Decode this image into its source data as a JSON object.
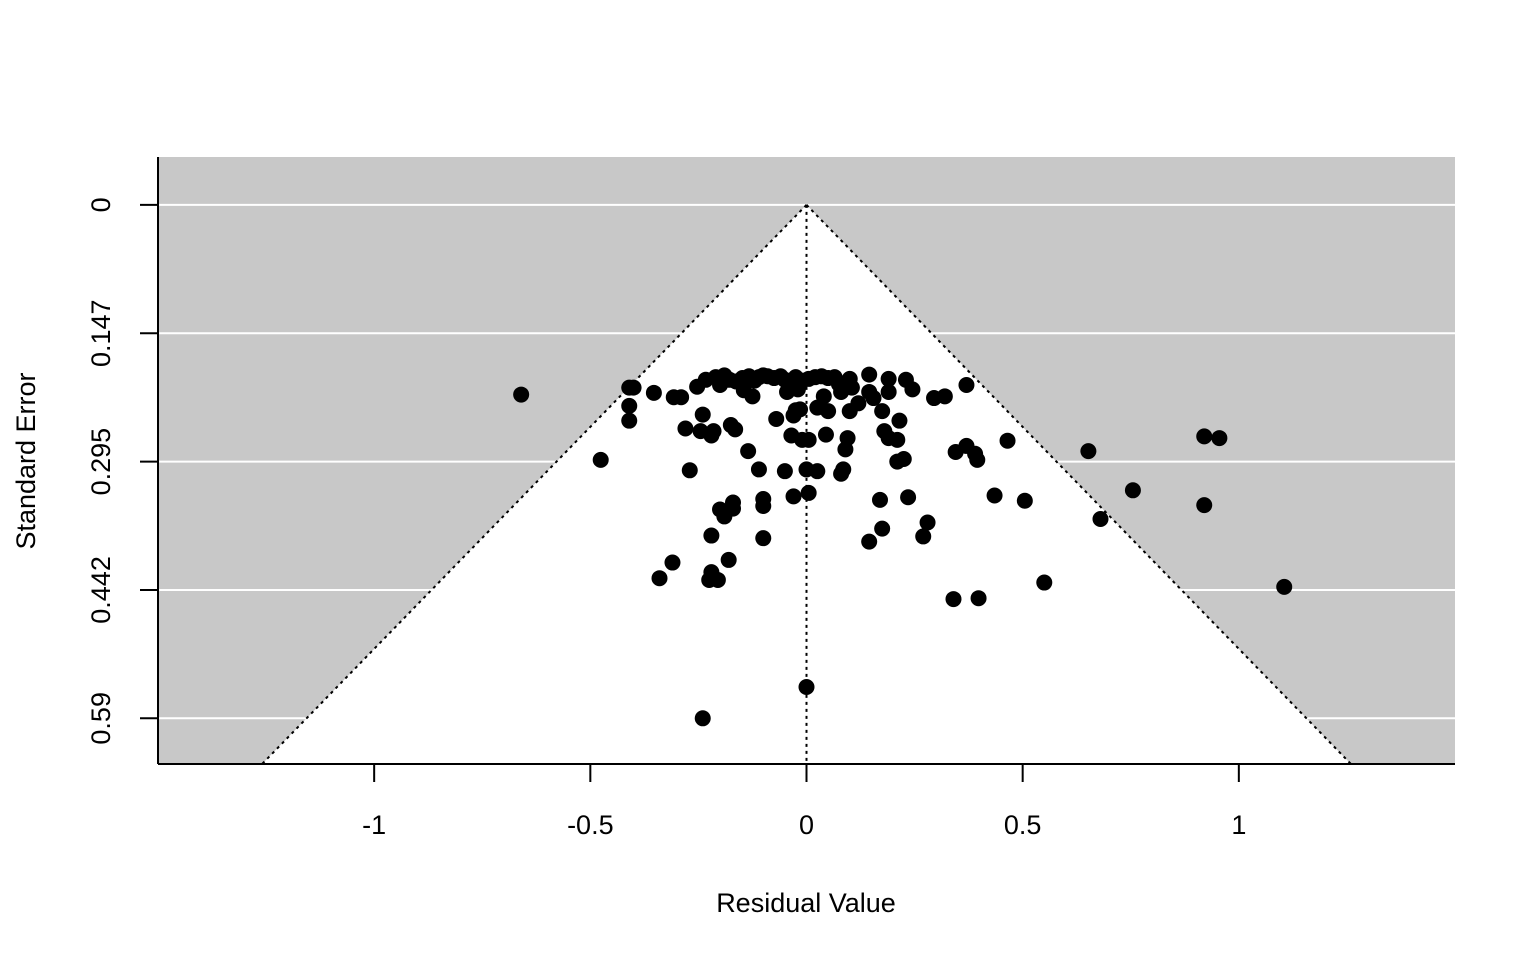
{
  "chart_data": {
    "type": "scatter",
    "title": "",
    "xlabel": "Residual Value",
    "ylabel": "Standard Error",
    "xlim": [
      -1.5,
      1.5
    ],
    "ylim_top_to_bottom": [
      -0.055,
      0.6425
    ],
    "y_axis_reversed": true,
    "x_ticks": [
      {
        "value": -1,
        "label": "-1"
      },
      {
        "value": -0.5,
        "label": "-0.5"
      },
      {
        "value": 0,
        "label": "0"
      },
      {
        "value": 0.5,
        "label": "0.5"
      },
      {
        "value": 1,
        "label": "1"
      }
    ],
    "y_ticks": [
      {
        "value": 0,
        "label": "0"
      },
      {
        "value": 0.1475,
        "label": "0.147"
      },
      {
        "value": 0.295,
        "label": "0.295"
      },
      {
        "value": 0.4425,
        "label": "0.442"
      },
      {
        "value": 0.59,
        "label": "0.59"
      }
    ],
    "funnel": {
      "center": 0,
      "multiplier": 1.96
    },
    "colors": {
      "background_region": "#c8c8c8",
      "funnel_interior": "#ffffff",
      "points": "#000000",
      "gridlines": "#ffffff"
    },
    "points": [
      [
        -0.66,
        0.218
      ],
      [
        -0.476,
        0.293
      ],
      [
        -0.41,
        0.21
      ],
      [
        -0.41,
        0.231
      ],
      [
        -0.41,
        0.248
      ],
      [
        -0.4,
        0.21
      ],
      [
        -0.353,
        0.216
      ],
      [
        -0.307,
        0.221
      ],
      [
        -0.29,
        0.221
      ],
      [
        -0.253,
        0.209
      ],
      [
        -0.233,
        0.201
      ],
      [
        -0.21,
        0.198
      ],
      [
        -0.19,
        0.196
      ],
      [
        -0.178,
        0.201
      ],
      [
        -0.163,
        0.203
      ],
      [
        -0.148,
        0.199
      ],
      [
        -0.133,
        0.197
      ],
      [
        -0.12,
        0.202
      ],
      [
        -0.11,
        0.198
      ],
      [
        -0.1,
        0.196
      ],
      [
        -0.09,
        0.197
      ],
      [
        -0.075,
        0.199
      ],
      [
        -0.06,
        0.197
      ],
      [
        -0.05,
        0.201
      ],
      [
        -0.04,
        0.203
      ],
      [
        -0.025,
        0.198
      ],
      [
        -0.01,
        0.202
      ],
      [
        0.005,
        0.2
      ],
      [
        0.02,
        0.198
      ],
      [
        0.035,
        0.197
      ],
      [
        0.05,
        0.199
      ],
      [
        0.065,
        0.198
      ],
      [
        0.075,
        0.206
      ],
      [
        0.085,
        0.207
      ],
      [
        0.1,
        0.2
      ],
      [
        0.105,
        0.21
      ],
      [
        0.145,
        0.195
      ],
      [
        0.19,
        0.2
      ],
      [
        0.23,
        0.201
      ],
      [
        0.245,
        0.212
      ],
      [
        -0.2,
        0.207
      ],
      [
        -0.145,
        0.213
      ],
      [
        -0.125,
        0.22
      ],
      [
        -0.045,
        0.215
      ],
      [
        -0.02,
        0.212
      ],
      [
        0.04,
        0.22
      ],
      [
        0.08,
        0.215
      ],
      [
        0.12,
        0.228
      ],
      [
        0.145,
        0.215
      ],
      [
        0.155,
        0.222
      ],
      [
        0.19,
        0.215
      ],
      [
        0.295,
        0.222
      ],
      [
        0.32,
        0.22
      ],
      [
        0.37,
        0.207
      ],
      [
        -0.24,
        0.241
      ],
      [
        -0.28,
        0.257
      ],
      [
        -0.245,
        0.26
      ],
      [
        -0.22,
        0.265
      ],
      [
        -0.215,
        0.26
      ],
      [
        -0.175,
        0.253
      ],
      [
        -0.165,
        0.258
      ],
      [
        -0.07,
        0.246
      ],
      [
        -0.03,
        0.242
      ],
      [
        -0.025,
        0.236
      ],
      [
        -0.015,
        0.235
      ],
      [
        0.025,
        0.233
      ],
      [
        0.05,
        0.237
      ],
      [
        0.1,
        0.237
      ],
      [
        0.175,
        0.237
      ],
      [
        0.215,
        0.248
      ],
      [
        0.18,
        0.26
      ],
      [
        0.19,
        0.268
      ],
      [
        -0.035,
        0.265
      ],
      [
        -0.01,
        0.27
      ],
      [
        0.005,
        0.27
      ],
      [
        0.045,
        0.264
      ],
      [
        0.095,
        0.268
      ],
      [
        0.09,
        0.281
      ],
      [
        0.21,
        0.27
      ],
      [
        0.465,
        0.271
      ],
      [
        0.345,
        0.284
      ],
      [
        0.37,
        0.277
      ],
      [
        0.39,
        0.286
      ],
      [
        0.395,
        0.293
      ],
      [
        0.225,
        0.292
      ],
      [
        0.21,
        0.295
      ],
      [
        -0.135,
        0.283
      ],
      [
        -0.27,
        0.305
      ],
      [
        -0.11,
        0.304
      ],
      [
        -0.05,
        0.306
      ],
      [
        0,
        0.304
      ],
      [
        0.025,
        0.306
      ],
      [
        0.085,
        0.304
      ],
      [
        0.08,
        0.309
      ],
      [
        0.652,
        0.283
      ],
      [
        0.92,
        0.266
      ],
      [
        0.955,
        0.268
      ],
      [
        -0.03,
        0.335
      ],
      [
        0.005,
        0.331
      ],
      [
        -0.1,
        0.338
      ],
      [
        -0.1,
        0.346
      ],
      [
        -0.17,
        0.342
      ],
      [
        -0.17,
        0.349
      ],
      [
        -0.2,
        0.35
      ],
      [
        -0.19,
        0.358
      ],
      [
        0.17,
        0.339
      ],
      [
        0.235,
        0.336
      ],
      [
        0.435,
        0.334
      ],
      [
        0.505,
        0.34
      ],
      [
        0.755,
        0.328
      ],
      [
        0.92,
        0.345
      ],
      [
        0.68,
        0.361
      ],
      [
        0.28,
        0.365
      ],
      [
        0.27,
        0.381
      ],
      [
        0.175,
        0.372
      ],
      [
        0.145,
        0.387
      ],
      [
        -0.22,
        0.38
      ],
      [
        -0.1,
        0.383
      ],
      [
        -0.18,
        0.408
      ],
      [
        -0.31,
        0.411
      ],
      [
        -0.34,
        0.429
      ],
      [
        -0.22,
        0.422
      ],
      [
        -0.225,
        0.431
      ],
      [
        -0.205,
        0.431
      ],
      [
        0.55,
        0.434
      ],
      [
        1.105,
        0.439
      ],
      [
        0.34,
        0.453
      ],
      [
        0.398,
        0.452
      ],
      [
        0,
        0.554
      ],
      [
        -0.24,
        0.59
      ]
    ]
  }
}
